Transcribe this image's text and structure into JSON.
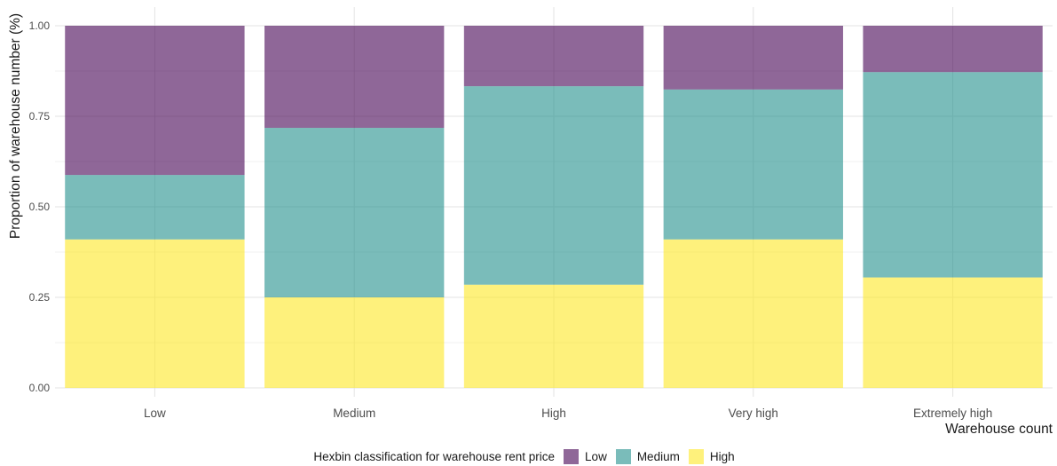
{
  "chart_data": {
    "type": "bar",
    "stacked": true,
    "categories": [
      "Low",
      "Medium",
      "High",
      "Very high",
      "Extremely high"
    ],
    "series": [
      {
        "name": "High",
        "color": "#fde725",
        "values": [
          0.41,
          0.25,
          0.285,
          0.41,
          0.305
        ]
      },
      {
        "name": "Medium",
        "color": "#21908c",
        "values": [
          0.178,
          0.468,
          0.548,
          0.414,
          0.567
        ]
      },
      {
        "name": "Low",
        "color": "#440154",
        "values": [
          0.412,
          0.282,
          0.167,
          0.176,
          0.128
        ]
      }
    ],
    "xlabel": "Warehouse count",
    "ylabel": "Proportion of warehouse number (%)",
    "ylim": [
      0,
      1
    ],
    "yticks": [
      "0.00",
      "0.25",
      "0.50",
      "0.75",
      "1.00"
    ],
    "grid": true,
    "legend_position": "bottom",
    "legend_title": "Hexbin classification for warehouse rent price",
    "legend_entries": [
      "Low",
      "Medium",
      "High"
    ]
  }
}
